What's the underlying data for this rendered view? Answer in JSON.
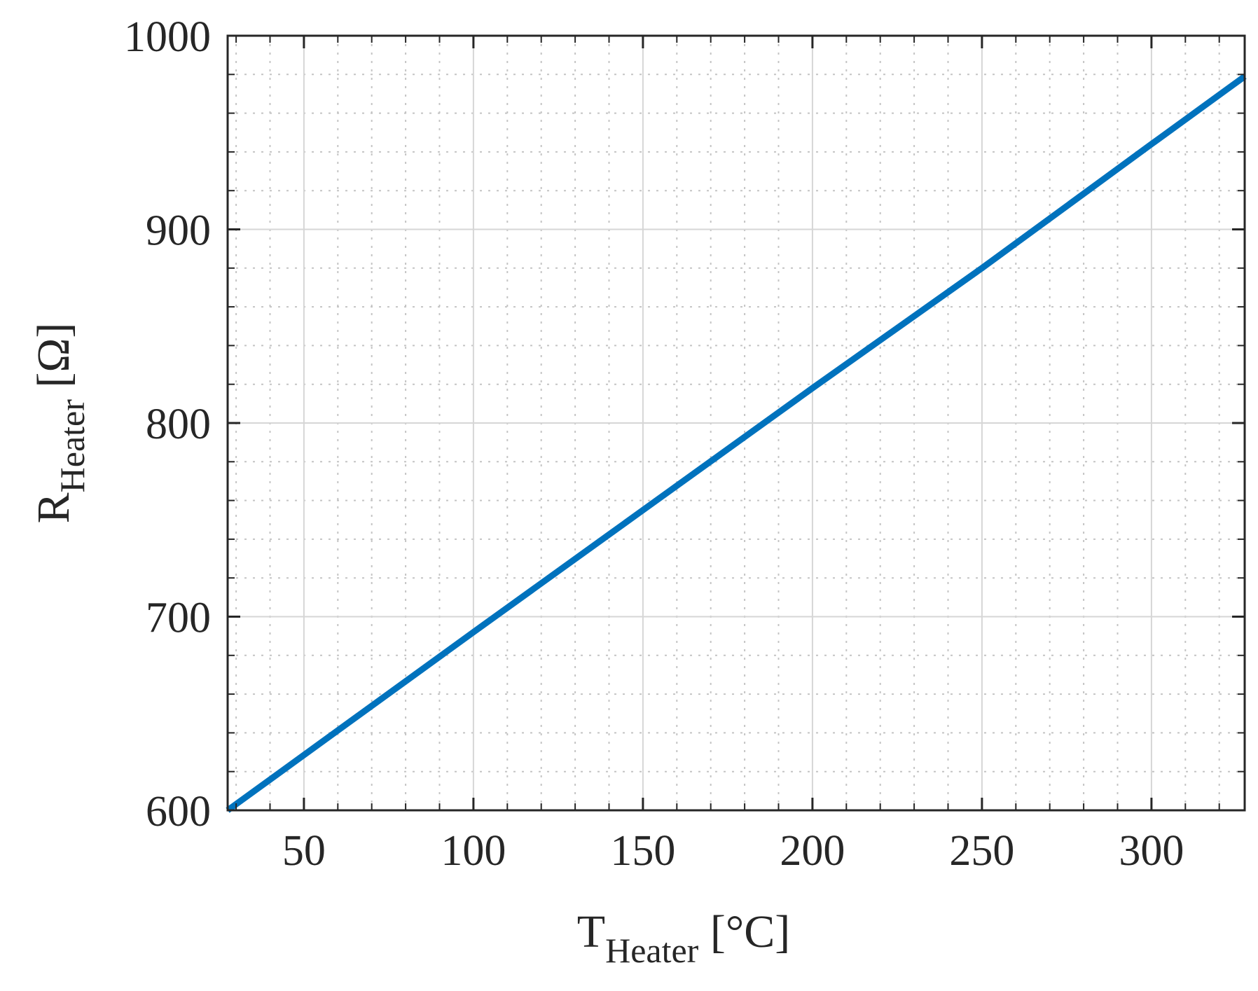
{
  "chart_data": {
    "type": "line",
    "title": "",
    "xlabel": {
      "main": "T",
      "subscript": "Heater",
      "unit": " [°C]"
    },
    "ylabel": {
      "main": "R",
      "subscript": "Heater",
      "unit": " [Ω]"
    },
    "xlim": [
      27.5,
      327.5
    ],
    "ylim": [
      600,
      1000
    ],
    "x_ticks": [
      50,
      100,
      150,
      200,
      250,
      300
    ],
    "x_tick_labels": [
      "50",
      "100",
      "150",
      "200",
      "250",
      "300"
    ],
    "y_ticks": [
      600,
      700,
      800,
      900,
      1000
    ],
    "y_tick_labels": [
      "600",
      "700",
      "800",
      "900",
      "1000"
    ],
    "x_minor_step": 10,
    "y_minor_step": 20,
    "grid": true,
    "minor_grid": true,
    "series": [
      {
        "color": "#0072BD",
        "x": [
          27.5,
          100,
          150,
          200,
          250,
          300,
          327.5
        ],
        "y": [
          600,
          692,
          755,
          818,
          880,
          944,
          979
        ]
      }
    ]
  }
}
